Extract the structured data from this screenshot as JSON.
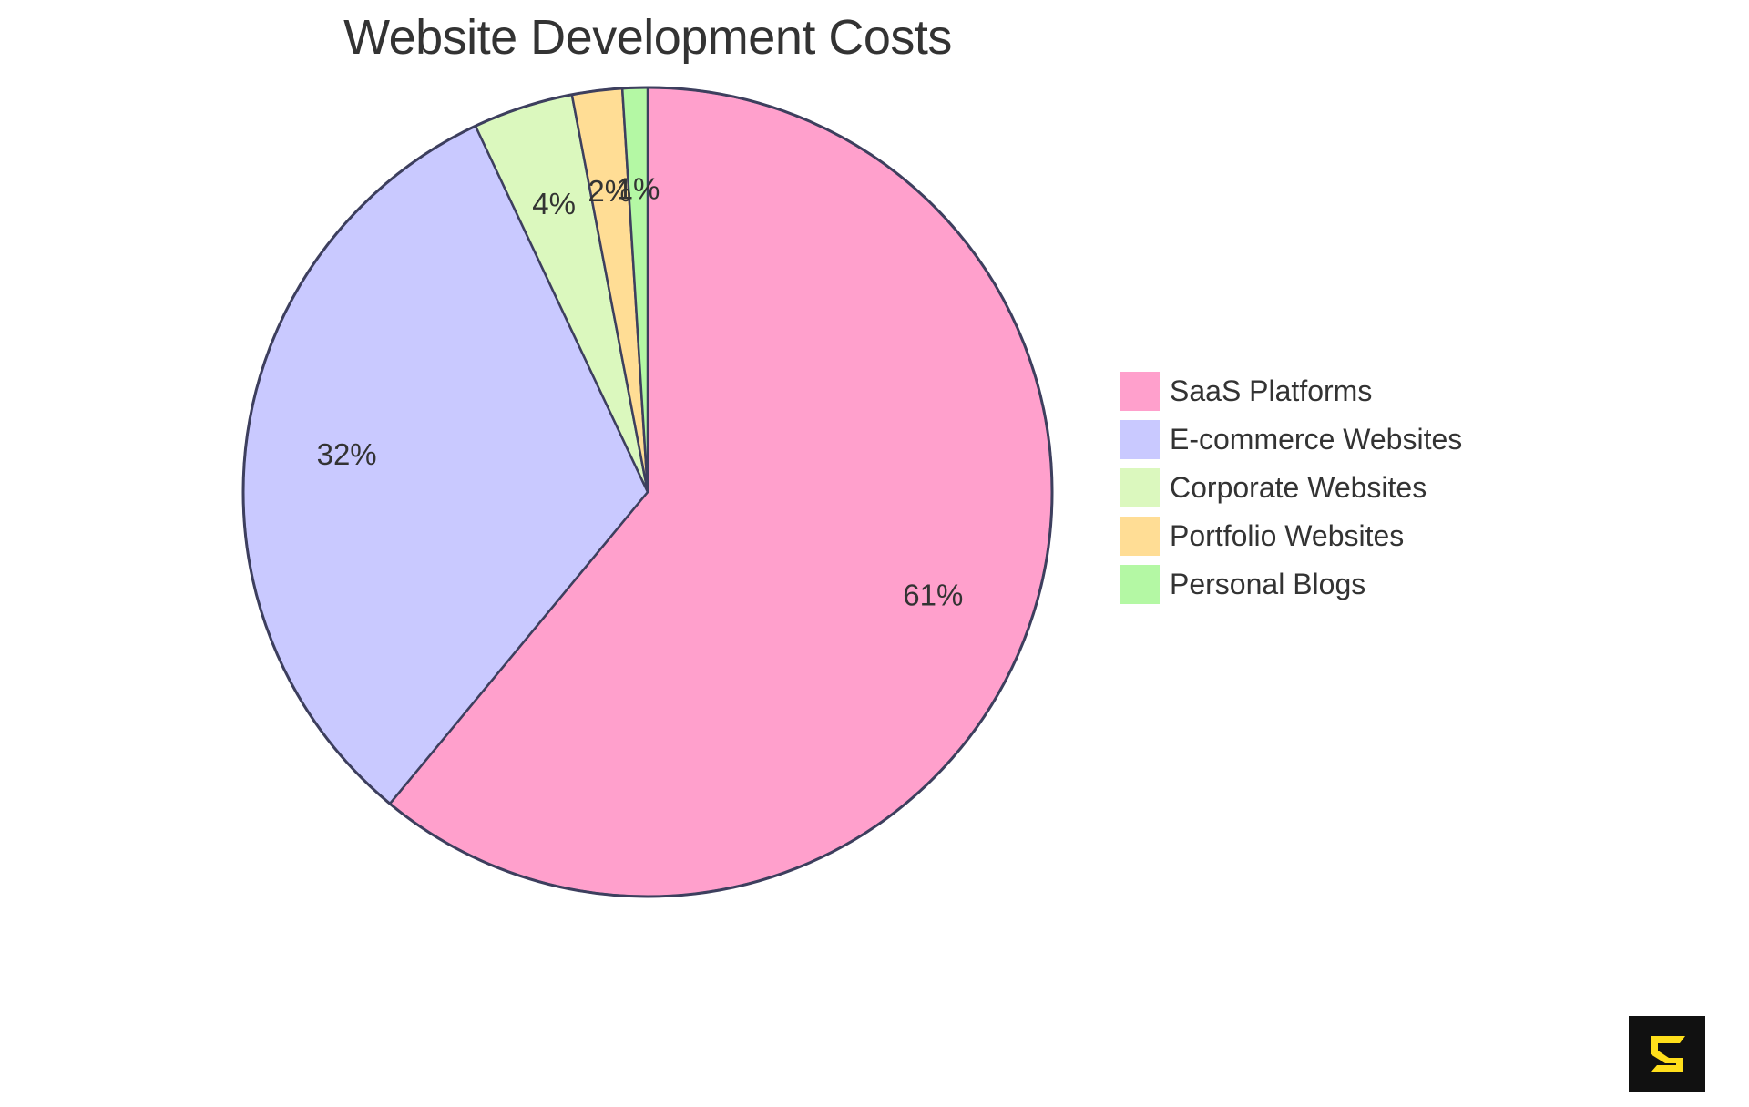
{
  "chart_data": {
    "type": "pie",
    "title": "Website Development Costs",
    "labels": [
      "SaaS Platforms",
      "E-commerce Websites",
      "Corporate Websites",
      "Portfolio Websites",
      "Personal Blogs"
    ],
    "values": [
      61,
      32,
      4,
      2,
      1
    ],
    "value_labels": [
      "61%",
      "32%",
      "4%",
      "2%",
      "1%"
    ],
    "colors": [
      "#FFA0CC",
      "#C9C9FF",
      "#DBF8BE",
      "#FFDD95",
      "#B4F8A4"
    ],
    "start_angle_deg": 0,
    "direction": "clockwise",
    "legend_position": "right",
    "stroke_color": "#3D3F5E"
  },
  "title": "Website Development Costs",
  "legend": {
    "items": [
      {
        "label": "SaaS Platforms",
        "color": "#FFA0CC"
      },
      {
        "label": "E-commerce Websites",
        "color": "#C9C9FF"
      },
      {
        "label": "Corporate Websites",
        "color": "#DBF8BE"
      },
      {
        "label": "Portfolio Websites",
        "color": "#FFDD95"
      },
      {
        "label": "Personal Blogs",
        "color": "#B4F8A4"
      }
    ]
  },
  "logo": {
    "icon": "s-logo-icon",
    "background": "#111111",
    "foreground": "#FFDF1B"
  }
}
